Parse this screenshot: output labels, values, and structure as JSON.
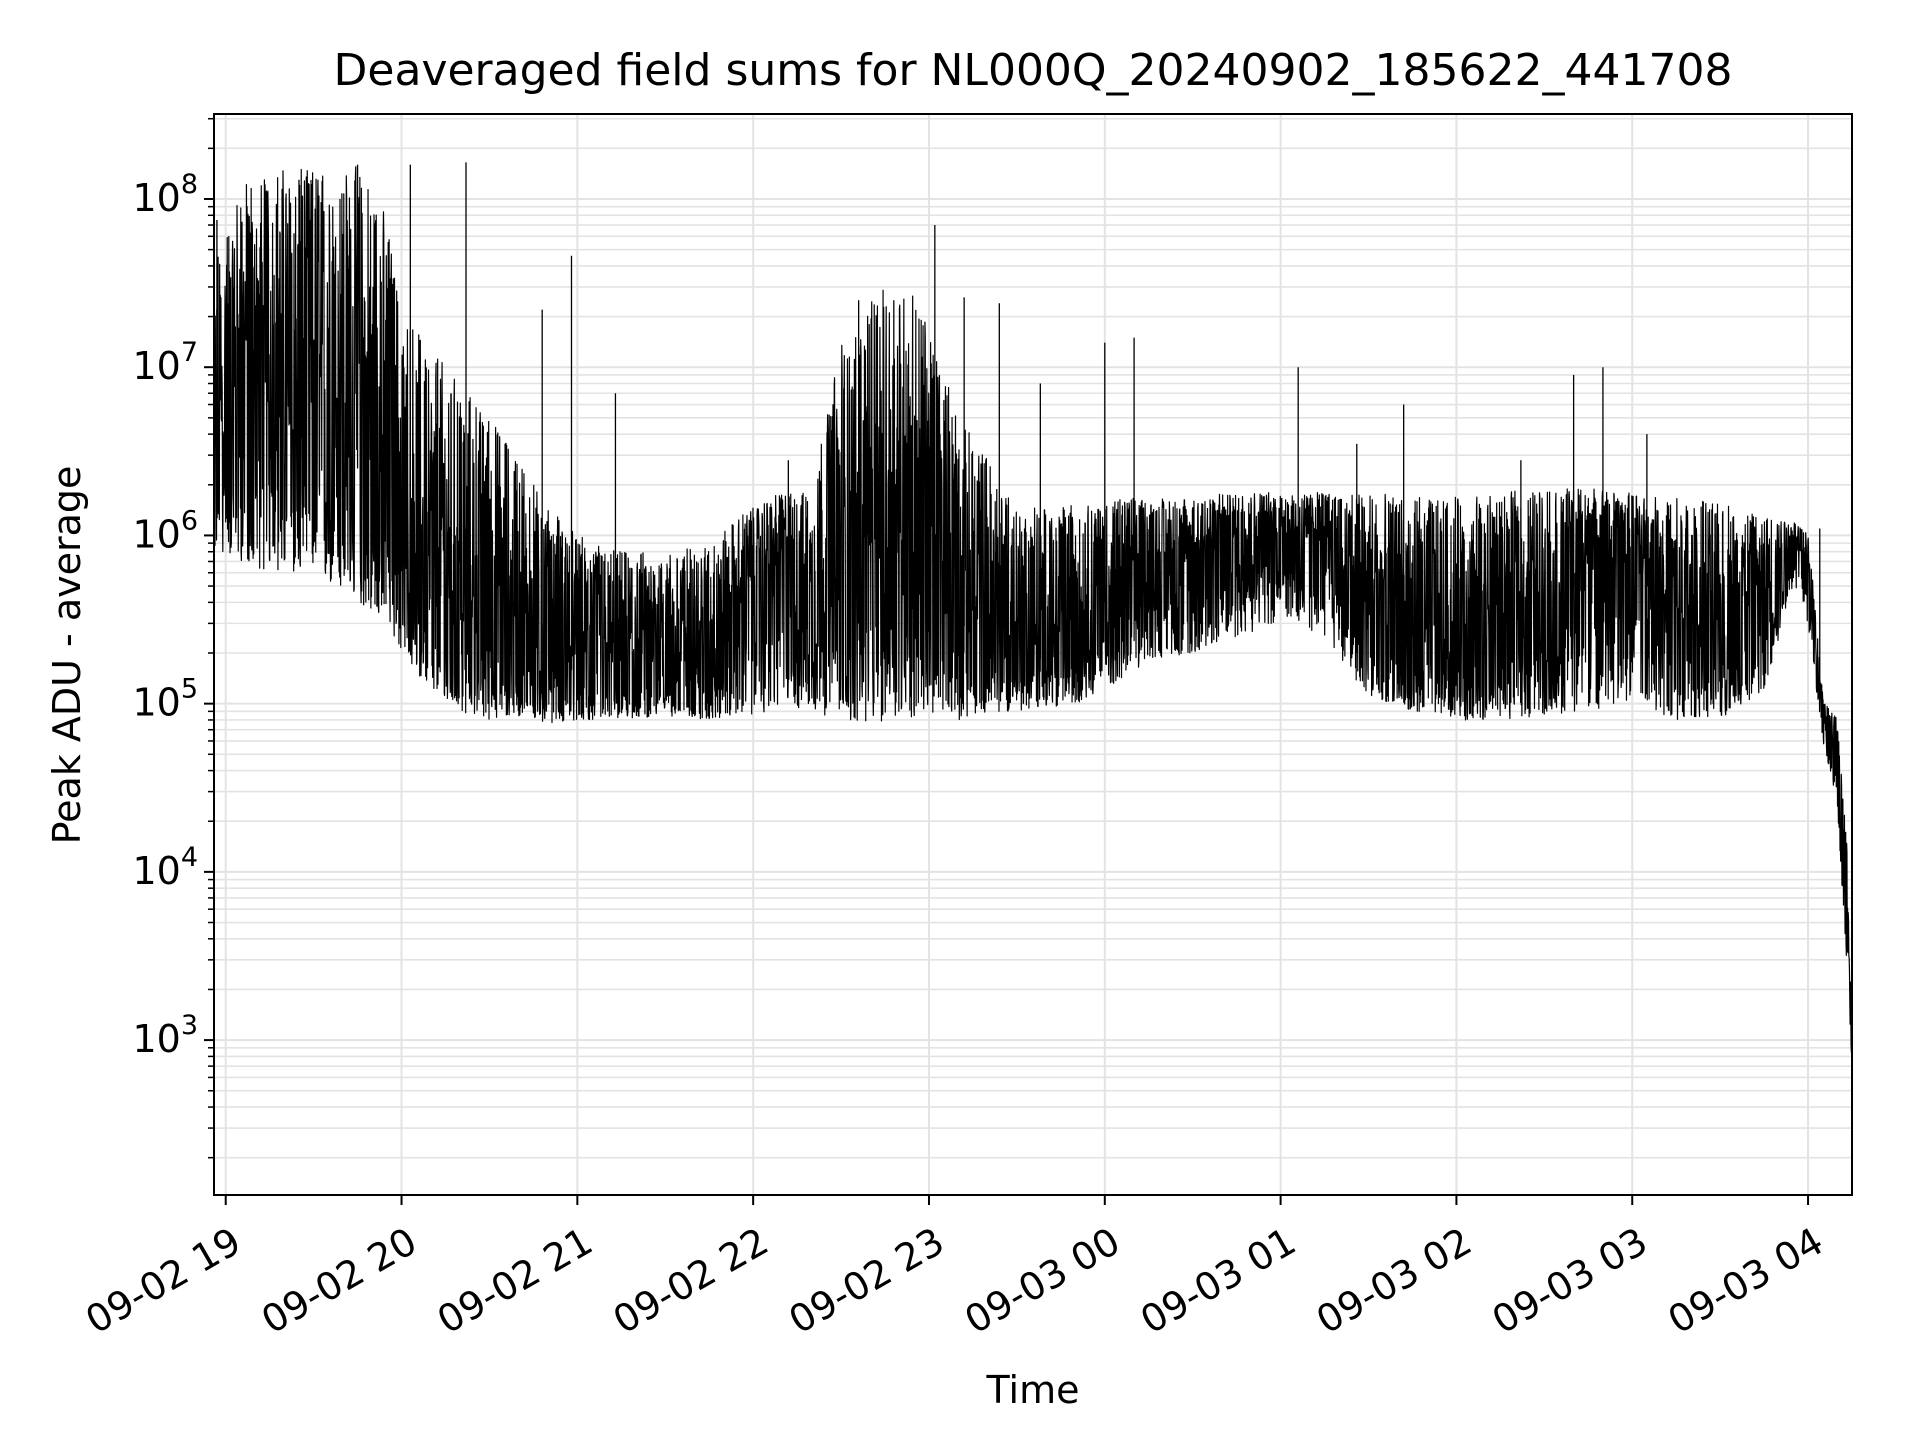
{
  "chart_data": {
    "type": "line",
    "title": "Deaveraged field sums for NL000Q_20240902_185622_441708",
    "xlabel": "Time",
    "ylabel": "Peak ADU - average",
    "yscale": "log",
    "xlim": [
      "2024-09-02 18:56",
      "2024-09-03 04:15"
    ],
    "ylim": [
      120,
      320000000
    ],
    "grid": true,
    "line_color": "#000000",
    "grid_color": "#e3e3e3",
    "x_ticks": [
      {
        "t": "2024-09-02 19:00",
        "label": "09-02 19"
      },
      {
        "t": "2024-09-02 20:00",
        "label": "09-02 20"
      },
      {
        "t": "2024-09-02 21:00",
        "label": "09-02 21"
      },
      {
        "t": "2024-09-02 22:00",
        "label": "09-02 22"
      },
      {
        "t": "2024-09-02 23:00",
        "label": "09-02 23"
      },
      {
        "t": "2024-09-03 00:00",
        "label": "09-03 00"
      },
      {
        "t": "2024-09-03 01:00",
        "label": "09-03 01"
      },
      {
        "t": "2024-09-03 02:00",
        "label": "09-03 02"
      },
      {
        "t": "2024-09-03 03:00",
        "label": "09-03 03"
      },
      {
        "t": "2024-09-03 04:00",
        "label": "09-03 04"
      }
    ],
    "y_ticks": [
      {
        "value": 1000,
        "base": "10",
        "exp": "3"
      },
      {
        "value": 10000,
        "base": "10",
        "exp": "4"
      },
      {
        "value": 100000,
        "base": "10",
        "exp": "5"
      },
      {
        "value": 1000000,
        "base": "10",
        "exp": "6"
      },
      {
        "value": 10000000,
        "base": "10",
        "exp": "7"
      },
      {
        "value": 100000000,
        "base": "10",
        "exp": "8"
      }
    ],
    "series": [
      {
        "x": [
          "2024-09-02 18:56",
          "2024-09-02 19:05",
          "2024-09-02 19:15",
          "2024-09-02 19:25",
          "2024-09-02 19:35",
          "2024-09-02 19:45",
          "2024-09-02 19:55",
          "2024-09-02 20:00",
          "2024-09-02 20:10",
          "2024-09-02 20:20",
          "2024-09-02 20:30",
          "2024-09-02 20:40",
          "2024-09-02 20:50",
          "2024-09-02 21:00",
          "2024-09-02 21:15",
          "2024-09-02 21:30",
          "2024-09-02 21:45",
          "2024-09-02 22:00",
          "2024-09-02 22:10",
          "2024-09-02 22:20",
          "2024-09-02 22:30",
          "2024-09-02 22:40",
          "2024-09-02 22:50",
          "2024-09-02 23:00",
          "2024-09-02 23:10",
          "2024-09-02 23:20",
          "2024-09-02 23:30",
          "2024-09-02 23:40",
          "2024-09-02 23:50",
          "2024-09-03 00:00",
          "2024-09-03 00:15",
          "2024-09-03 00:30",
          "2024-09-03 00:45",
          "2024-09-03 01:00",
          "2024-09-03 01:15",
          "2024-09-03 01:30",
          "2024-09-03 01:45",
          "2024-09-03 02:00",
          "2024-09-03 02:15",
          "2024-09-03 02:30",
          "2024-09-03 02:45",
          "2024-09-03 03:00",
          "2024-09-03 03:15",
          "2024-09-03 03:30",
          "2024-09-03 03:45",
          "2024-09-03 03:55",
          "2024-09-03 04:00",
          "2024-09-03 04:05",
          "2024-09-03 04:10",
          "2024-09-03 04:13",
          "2024-09-03 04:15"
        ],
        "y": [
          3000000,
          6000000,
          5000000,
          3500000,
          3000000,
          2500000,
          1500000,
          600000,
          350000,
          300000,
          250000,
          200000,
          200000,
          150000,
          150000,
          170000,
          180000,
          500000,
          700000,
          450000,
          300000,
          500000,
          900000,
          500000,
          300000,
          250000,
          200000,
          180000,
          250000,
          400000,
          600000,
          700000,
          900000,
          1000000,
          900000,
          300000,
          200000,
          200000,
          250000,
          350000,
          600000,
          700000,
          250000,
          180000,
          400000,
          1000000,
          600000,
          90000,
          40000,
          5000,
          800
        ],
        "envelope_low": [
          800000,
          700000,
          600000,
          600000,
          500000,
          400000,
          300000,
          200000,
          120000,
          90000,
          80000,
          80000,
          75000,
          80000,
          80000,
          85000,
          80000,
          85000,
          95000,
          90000,
          80000,
          75000,
          80000,
          85000,
          80000,
          90000,
          90000,
          95000,
          100000,
          120000,
          180000,
          200000,
          250000,
          300000,
          250000,
          110000,
          90000,
          80000,
          80000,
          85000,
          90000,
          100000,
          80000,
          80000,
          120000,
          500000,
          300000,
          60000,
          25000,
          3000,
          700
        ],
        "envelope_high": [
          40000000,
          120000000,
          150000000,
          150000000,
          150000000,
          160000000,
          80000000,
          20000000,
          15000000,
          8000000,
          5000000,
          3000000,
          1500000,
          1000000,
          800000,
          800000,
          900000,
          1500000,
          1800000,
          1800000,
          15000000,
          25000000,
          35000000,
          20000000,
          5000000,
          3000000,
          1500000,
          1500000,
          1600000,
          1600000,
          1700000,
          1700000,
          1800000,
          1800000,
          1800000,
          1800000,
          1700000,
          1700000,
          1800000,
          1900000,
          1900000,
          1800000,
          1700000,
          1600000,
          1300000,
          1200000,
          1100000,
          120000,
          80000,
          20000,
          1000
        ],
        "spikes": [
          {
            "t": "2024-09-02 18:57",
            "y": 75000000
          },
          {
            "t": "2024-09-02 19:25",
            "y": 130000000
          },
          {
            "t": "2024-09-02 19:45",
            "y": 160000000
          },
          {
            "t": "2024-09-02 20:03",
            "y": 160000000
          },
          {
            "t": "2024-09-02 20:22",
            "y": 165000000
          },
          {
            "t": "2024-09-02 20:48",
            "y": 22000000
          },
          {
            "t": "2024-09-02 20:58",
            "y": 46000000
          },
          {
            "t": "2024-09-02 21:13",
            "y": 7000000
          },
          {
            "t": "2024-09-02 22:12",
            "y": 2800000
          },
          {
            "t": "2024-09-02 22:36",
            "y": 25000000
          },
          {
            "t": "2024-09-02 22:48",
            "y": 25000000
          },
          {
            "t": "2024-09-02 23:02",
            "y": 70000000
          },
          {
            "t": "2024-09-02 23:12",
            "y": 26000000
          },
          {
            "t": "2024-09-02 23:24",
            "y": 24000000
          },
          {
            "t": "2024-09-02 23:38",
            "y": 8000000
          },
          {
            "t": "2024-09-03 00:00",
            "y": 14000000
          },
          {
            "t": "2024-09-03 00:10",
            "y": 15000000
          },
          {
            "t": "2024-09-03 01:06",
            "y": 10000000
          },
          {
            "t": "2024-09-03 01:26",
            "y": 3500000
          },
          {
            "t": "2024-09-03 01:42",
            "y": 6000000
          },
          {
            "t": "2024-09-03 02:22",
            "y": 2800000
          },
          {
            "t": "2024-09-03 02:40",
            "y": 9000000
          },
          {
            "t": "2024-09-03 02:50",
            "y": 10000000
          },
          {
            "t": "2024-09-03 03:05",
            "y": 4000000
          },
          {
            "t": "2024-09-03 04:04",
            "y": 1100000
          }
        ]
      }
    ]
  }
}
